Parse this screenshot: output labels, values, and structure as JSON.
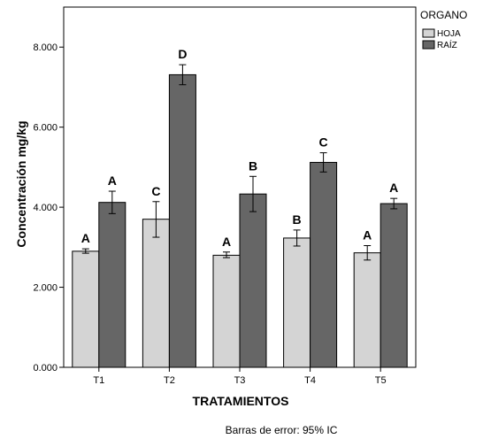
{
  "chart_data": {
    "type": "bar",
    "title": "",
    "xlabel": "TRATAMIENTOS",
    "ylabel": "Concentración mg/kg",
    "categories": [
      "T1",
      "T2",
      "T3",
      "T4",
      "T5"
    ],
    "ylim": [
      0,
      9000
    ],
    "yticks": [
      {
        "value": 0,
        "label": "0.000"
      },
      {
        "value": 2000,
        "label": "2.000"
      },
      {
        "value": 4000,
        "label": "4.000"
      },
      {
        "value": 6000,
        "label": "6.000"
      },
      {
        "value": 8000,
        "label": "8.000"
      }
    ],
    "grid": false,
    "legend": {
      "title": "ORGANO",
      "placement": "top-right, outside plot"
    },
    "series": [
      {
        "name": "HOJA",
        "color": "#d4d4d4",
        "values": [
          2900,
          3700,
          2800,
          3230,
          2860
        ],
        "error_low": [
          2850,
          3250,
          2740,
          3030,
          2680
        ],
        "error_high": [
          2960,
          4140,
          2880,
          3430,
          3040
        ],
        "labels": [
          "A",
          "C",
          "A",
          "B",
          "A"
        ]
      },
      {
        "name": "RAÍZ",
        "color": "#666666",
        "values": [
          4120,
          7310,
          4330,
          5120,
          4090
        ],
        "error_low": [
          3840,
          7060,
          3890,
          4880,
          3960
        ],
        "error_high": [
          4400,
          7560,
          4770,
          5360,
          4220
        ],
        "labels": [
          "A",
          "D",
          "B",
          "C",
          "A"
        ]
      }
    ],
    "footnote": "Barras de error: 95% IC"
  }
}
